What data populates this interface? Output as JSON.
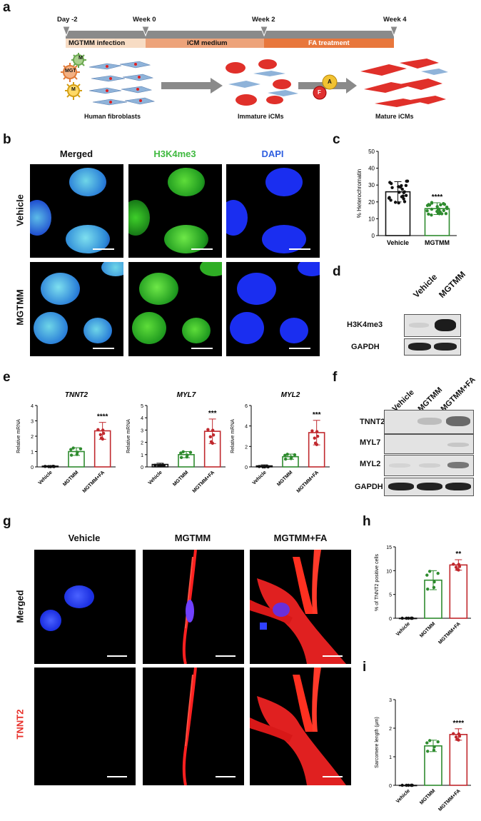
{
  "panels": {
    "a": "a",
    "b": "b",
    "c": "c",
    "d": "d",
    "e": "e",
    "f": "f",
    "g": "g",
    "h": "h",
    "i": "i"
  },
  "timeline": {
    "markers": [
      "Day -2",
      "Week 0",
      "Week 2",
      "Week 4"
    ],
    "phases": [
      "MGTMM infection",
      "iCM medium",
      "FA treatment"
    ],
    "colors": {
      "phase1": "#f7dcc4",
      "phase2": "#eda37a",
      "phase3": "#e8773c",
      "bar": "#8a8a8a"
    },
    "virus_labels": [
      "M",
      "MGT",
      "M"
    ],
    "drug_labels": [
      "A",
      "F"
    ],
    "stages": [
      "Human fibroblasts",
      "Immature iCMs",
      "Mature iCMs"
    ]
  },
  "panel_b": {
    "headers": [
      "Merged",
      "H3K4me3",
      "DAPI"
    ],
    "header_colors": [
      "#111111",
      "#3fb93f",
      "#2f5fe0"
    ],
    "rows": [
      "Vehicle",
      "MGTMM"
    ]
  },
  "panel_d": {
    "columns": [
      "Vehicle",
      "MGTMM"
    ],
    "rows": [
      "H3K4me3",
      "GAPDH"
    ]
  },
  "panel_f": {
    "columns": [
      "Vehicle",
      "MGTMM",
      "MGTMM+FA"
    ],
    "rows": [
      "TNNT2",
      "MYL7",
      "MYL2",
      "GAPDH"
    ]
  },
  "panel_g": {
    "headers": [
      "Vehicle",
      "MGTMM",
      "MGTMM+FA"
    ],
    "rows": [
      "Merged",
      "TNNT2"
    ],
    "row_colors": [
      "#111111",
      "#e8302a"
    ]
  },
  "chart_data": [
    {
      "id": "c",
      "type": "bar",
      "categories": [
        "Vehicle",
        "MGTMM"
      ],
      "values": [
        26,
        16
      ],
      "errors": [
        6,
        3.5
      ],
      "ylabel": "% Heterochromatin",
      "ylim": [
        0,
        50
      ],
      "yticks": [
        0,
        10,
        20,
        30,
        40,
        50
      ],
      "colors": [
        "#111111",
        "#2e8b2e"
      ],
      "significance": [
        "",
        "****"
      ]
    },
    {
      "id": "e1",
      "type": "bar",
      "title": "TNNT2",
      "categories": [
        "Vehicle",
        "MGTMM",
        "MGTMM+FA"
      ],
      "values": [
        0.05,
        1.0,
        2.35
      ],
      "errors": [
        0.03,
        0.25,
        0.55
      ],
      "ylabel": "Relative mRNA",
      "ylim": [
        0,
        4
      ],
      "yticks": [
        0,
        1,
        2,
        3,
        4
      ],
      "colors": [
        "#111111",
        "#2e8b2e",
        "#c0282d"
      ],
      "significance": [
        "",
        "",
        "****"
      ]
    },
    {
      "id": "e2",
      "type": "bar",
      "title": "MYL7",
      "categories": [
        "Vehicle",
        "MGTMM",
        "MGTMM+FA"
      ],
      "values": [
        0.2,
        1.0,
        2.9
      ],
      "errors": [
        0.1,
        0.25,
        1.0
      ],
      "ylabel": "Relative mRNA",
      "ylim": [
        0,
        5
      ],
      "yticks": [
        0,
        1,
        2,
        3,
        4,
        5
      ],
      "colors": [
        "#111111",
        "#2e8b2e",
        "#c0282d"
      ],
      "significance": [
        "",
        "",
        "***"
      ]
    },
    {
      "id": "e3",
      "type": "bar",
      "title": "MYL2",
      "categories": [
        "Vehicle",
        "MGTMM",
        "MGTMM+FA"
      ],
      "values": [
        0.1,
        1.0,
        3.35
      ],
      "errors": [
        0.1,
        0.25,
        1.2
      ],
      "ylabel": "Relative mRNA",
      "ylim": [
        0,
        6
      ],
      "yticks": [
        0,
        2,
        4,
        6
      ],
      "colors": [
        "#111111",
        "#2e8b2e",
        "#c0282d"
      ],
      "significance": [
        "",
        "",
        "***"
      ]
    },
    {
      "id": "h",
      "type": "bar",
      "categories": [
        "Vehicle",
        "MGTMM",
        "MGTMM+FA"
      ],
      "values": [
        0,
        8,
        11.2
      ],
      "errors": [
        0,
        2,
        1.1
      ],
      "ylabel": "% of TNNT2 positive cells",
      "ylim": [
        0,
        15
      ],
      "yticks": [
        0,
        5,
        10,
        15
      ],
      "colors": [
        "#111111",
        "#2e8b2e",
        "#c0282d"
      ],
      "significance": [
        "",
        "",
        "**"
      ]
    },
    {
      "id": "i",
      "type": "bar",
      "categories": [
        "Vehicle",
        "MGTMM",
        "MGTMM+FA"
      ],
      "values": [
        0,
        1.38,
        1.78
      ],
      "errors": [
        0,
        0.2,
        0.2
      ],
      "ylabel": "Sarcomere length (μm)",
      "ylim": [
        0,
        3
      ],
      "yticks": [
        0,
        1,
        2,
        3
      ],
      "colors": [
        "#111111",
        "#2e8b2e",
        "#c0282d"
      ],
      "significance": [
        "",
        "",
        "****"
      ]
    }
  ]
}
